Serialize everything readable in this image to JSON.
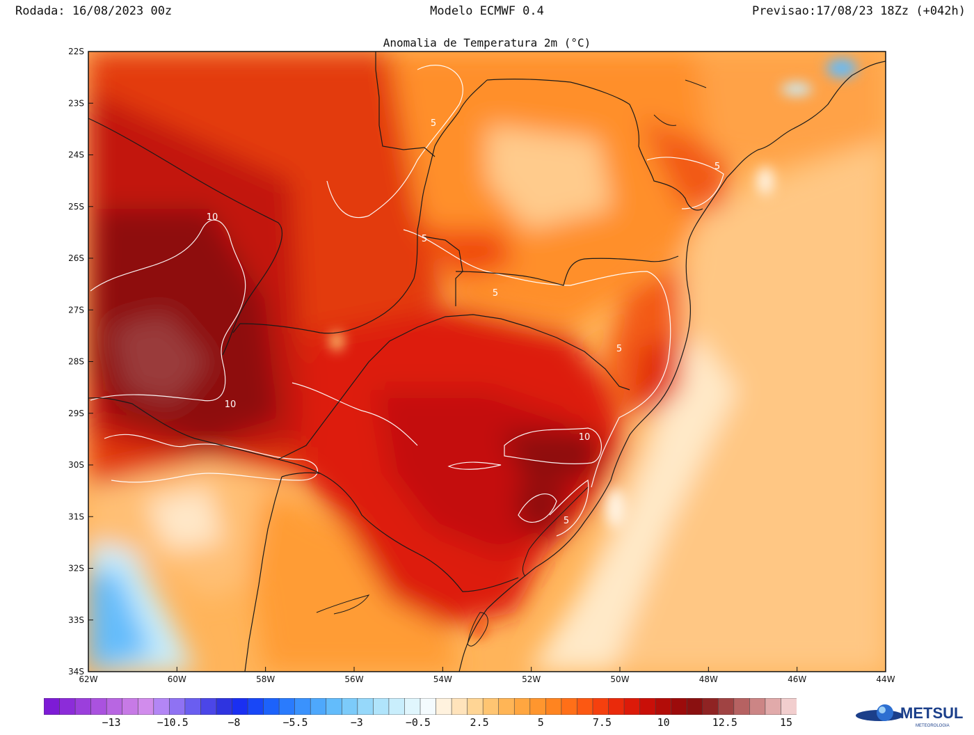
{
  "header": {
    "run": "Rodada: 16/08/2023 00z",
    "model": "Modelo ECMWF 0.4",
    "forecast": "Previsao:17/08/23 18Zz (+042h)"
  },
  "map": {
    "title": "Anomalia de Temperatura 2m (°C)",
    "lat_labels": [
      "22S",
      "23S",
      "24S",
      "25S",
      "26S",
      "27S",
      "28S",
      "29S",
      "30S",
      "31S",
      "32S",
      "33S",
      "34S"
    ],
    "lon_labels": [
      "62W",
      "60W",
      "58W",
      "56W",
      "54W",
      "52W",
      "50W",
      "48W",
      "46W",
      "44W"
    ],
    "contour_labels": [
      "10",
      "10",
      "10",
      "5",
      "5",
      "5",
      "5",
      "5",
      "5",
      "5"
    ]
  },
  "colorbar": {
    "labels": [
      "−13",
      "−10.5",
      "−8",
      "−5.5",
      "−3",
      "−0.5",
      "2.5",
      "5",
      "7.5",
      "10",
      "12.5",
      "15"
    ],
    "colors": [
      "#7d1bd6",
      "#8c2cd9",
      "#9b3fdc",
      "#aa52df",
      "#b866e2",
      "#c77ae6",
      "#d18cec",
      "#b386f5",
      "#8f72f3",
      "#6a5ef0",
      "#4b46e8",
      "#2f34e0",
      "#1a2ff2",
      "#1847f7",
      "#1c62fb",
      "#2a7bfd",
      "#3a92fd",
      "#4ea8fc",
      "#63bcfb",
      "#7ccbfa",
      "#96d8fa",
      "#b0e4fb",
      "#c9eefc",
      "#e0f6fd",
      "#f4fbfe",
      "#fff2de",
      "#ffe3bb",
      "#ffd595",
      "#ffc572",
      "#ffb556",
      "#ffa640",
      "#ff962e",
      "#ff8420",
      "#ff6f18",
      "#fc5812",
      "#f5400e",
      "#ea2a0b",
      "#dc1a09",
      "#c90f08",
      "#b20c08",
      "#9c0b0b",
      "#8a1010",
      "#8f2323",
      "#a04343",
      "#b66262",
      "#cc8585",
      "#e1aaaa",
      "#f2cece"
    ],
    "low_color": "#7d1bd6",
    "high_color": "#f6e6e6"
  },
  "logo": {
    "text": "METSUL",
    "sub": "METEOROLOGIA"
  }
}
